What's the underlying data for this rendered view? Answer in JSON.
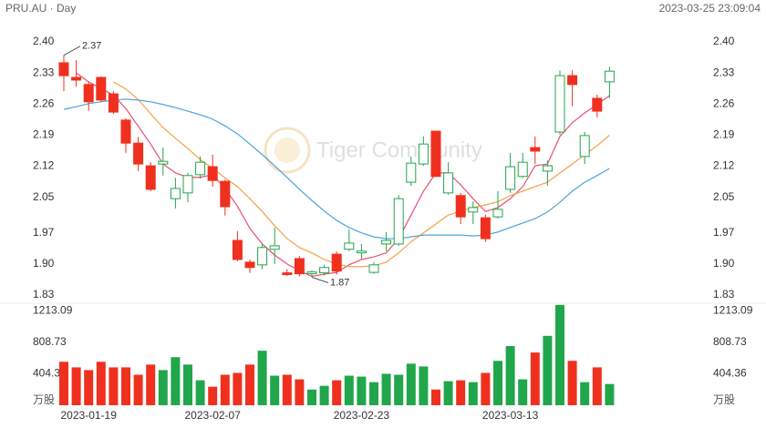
{
  "chart_data": {
    "type": "candlestick",
    "title": "PRU.AU · Day",
    "timestamp": "2023-03-25 23:09:04",
    "watermark": "Tiger Community",
    "volume_unit": "万股",
    "categories": [
      null,
      null,
      "2023-01-19",
      null,
      null,
      null,
      null,
      null,
      null,
      null,
      null,
      null,
      "2023-02-07",
      null,
      null,
      null,
      null,
      null,
      null,
      null,
      null,
      null,
      null,
      null,
      "2023-02-23",
      null,
      null,
      null,
      null,
      null,
      null,
      null,
      null,
      null,
      null,
      null,
      "2023-03-13",
      null,
      null,
      null,
      null,
      null,
      null,
      null,
      null
    ],
    "open": [
      2.353,
      2.32,
      2.304,
      2.32,
      2.283,
      2.224,
      2.172,
      2.121,
      2.125,
      2.047,
      2.06,
      2.101,
      2.119,
      2.086,
      1.953,
      1.904,
      1.898,
      1.933,
      1.88,
      1.912,
      1.878,
      1.88,
      1.922,
      1.933,
      1.925,
      1.881,
      1.945,
      1.945,
      2.084,
      2.125,
      2.199,
      2.06,
      2.054,
      2.017,
      2.004,
      2.006,
      2.068,
      2.097,
      2.162,
      2.109,
      2.197,
      2.324,
      2.142,
      2.273,
      2.31
    ],
    "high": [
      2.37,
      2.359,
      2.31,
      2.322,
      2.289,
      2.228,
      2.186,
      2.129,
      2.162,
      2.094,
      2.105,
      2.142,
      2.146,
      2.09,
      1.974,
      1.91,
      1.945,
      1.982,
      1.888,
      1.918,
      1.886,
      1.898,
      1.928,
      1.978,
      1.945,
      1.904,
      1.972,
      2.055,
      2.142,
      2.187,
      2.199,
      2.129,
      2.06,
      2.041,
      2.011,
      2.064,
      2.15,
      2.15,
      2.187,
      2.133,
      2.336,
      2.336,
      2.197,
      2.281,
      2.344
    ],
    "low": [
      2.289,
      2.299,
      2.245,
      2.265,
      2.238,
      2.15,
      2.109,
      2.064,
      2.099,
      2.025,
      2.039,
      2.092,
      2.074,
      2.009,
      1.906,
      1.88,
      1.888,
      1.9,
      1.873,
      1.872,
      1.87,
      1.874,
      1.876,
      1.929,
      1.911,
      1.878,
      1.929,
      1.941,
      2.076,
      2.121,
      2.097,
      2.056,
      1.99,
      1.99,
      1.949,
      2.002,
      2.06,
      2.093,
      2.125,
      2.076,
      2.191,
      2.255,
      2.125,
      2.23,
      2.273
    ],
    "close": [
      2.324,
      2.314,
      2.265,
      2.269,
      2.242,
      2.172,
      2.125,
      2.068,
      2.131,
      2.07,
      2.099,
      2.129,
      2.088,
      2.029,
      1.91,
      1.892,
      1.937,
      1.941,
      1.876,
      1.878,
      1.882,
      1.892,
      1.884,
      1.947,
      1.929,
      1.898,
      1.953,
      2.047,
      2.127,
      2.17,
      2.097,
      2.105,
      2.006,
      2.027,
      1.957,
      2.023,
      2.119,
      2.129,
      2.154,
      2.121,
      2.324,
      2.304,
      2.189,
      2.244,
      2.334
    ],
    "volume": [
      559,
      487,
      452,
      559,
      487,
      487,
      392,
      523,
      452,
      618,
      523,
      321,
      238,
      392,
      416,
      523,
      701,
      380,
      392,
      333,
      202,
      250,
      321,
      380,
      368,
      297,
      404,
      392,
      535,
      499,
      202,
      309,
      321,
      297,
      416,
      571,
      761,
      333,
      678,
      892,
      1290,
      571,
      297,
      487,
      273
    ],
    "up_color": "#21a64b",
    "down_color": "#f0301e",
    "lines": [
      {
        "color": "#e8506e",
        "values": [
          null,
          2.33,
          2.31,
          2.295,
          2.28,
          2.25,
          2.21,
          2.17,
          2.125,
          2.105,
          2.095,
          2.095,
          2.101,
          2.07,
          2.03,
          1.98,
          1.945,
          1.92,
          1.9,
          1.885,
          1.872,
          1.877,
          1.881,
          1.898,
          1.91,
          1.916,
          1.925,
          1.957,
          2.01,
          2.064,
          2.105,
          2.105,
          2.078,
          2.047,
          2.018,
          2.027,
          2.047,
          2.074,
          2.121,
          2.125,
          2.187,
          2.218,
          2.24,
          2.259,
          2.279
        ]
      },
      {
        "color": "#f5a04a",
        "values": [
          null,
          null,
          null,
          null,
          2.31,
          2.294,
          2.27,
          2.238,
          2.207,
          2.183,
          2.16,
          2.135,
          2.115,
          2.094,
          2.074,
          2.047,
          2.018,
          1.986,
          1.957,
          1.937,
          1.925,
          1.91,
          1.9,
          1.894,
          1.894,
          1.896,
          1.904,
          1.925,
          1.95,
          1.97,
          1.99,
          2.01,
          2.019,
          2.027,
          2.033,
          2.04,
          2.054,
          2.064,
          2.074,
          2.084,
          2.105,
          2.125,
          2.146,
          2.166,
          2.19
        ]
      },
      {
        "color": "#4ba3de",
        "values": [
          2.248,
          2.254,
          2.261,
          2.265,
          2.269,
          2.271,
          2.269,
          2.265,
          2.259,
          2.252,
          2.244,
          2.236,
          2.226,
          2.211,
          2.193,
          2.17,
          2.146,
          2.121,
          2.095,
          2.068,
          2.043,
          2.019,
          1.998,
          1.982,
          1.97,
          1.961,
          1.957,
          1.957,
          1.961,
          1.965,
          1.965,
          1.965,
          1.965,
          1.963,
          1.965,
          1.972,
          1.982,
          1.992,
          2.002,
          2.017,
          2.039,
          2.064,
          2.084,
          2.099,
          2.115
        ]
      }
    ],
    "ylim": [
      1.83,
      2.4
    ],
    "yticks": [
      1.83,
      {
        "value": 1.9,
        "label": "1.90"
      },
      1.97,
      2.05,
      2.12,
      2.19,
      2.26,
      2.33,
      {
        "value": 2.4,
        "label": "2.40"
      }
    ],
    "volume_ylim": [
      0,
      1300
    ],
    "volume_ticks": [
      404.36,
      808.73,
      1213.09
    ],
    "grid": false
  }
}
